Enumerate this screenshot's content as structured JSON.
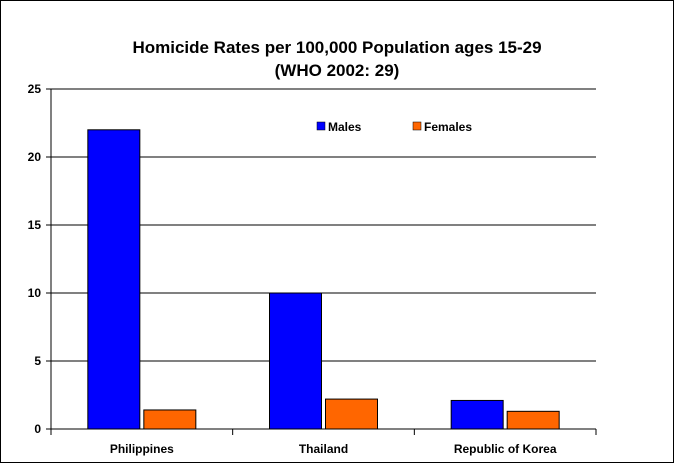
{
  "chart_data": {
    "type": "bar",
    "title": "Homicide Rates per 100,000 Population ages 15-29",
    "subtitle": "(WHO 2002: 29)",
    "xlabel": "",
    "ylabel": "",
    "categories": [
      "Philippines",
      "Thailand",
      "Republic of Korea"
    ],
    "series": [
      {
        "name": "Males",
        "color": "#0000ff",
        "values": [
          22,
          10,
          2.1
        ]
      },
      {
        "name": "Females",
        "color": "#ff6600",
        "values": [
          1.4,
          2.2,
          1.3
        ]
      }
    ],
    "ylim": [
      0,
      25
    ],
    "yticks": [
      0,
      5,
      10,
      15,
      20,
      25
    ],
    "grid": true,
    "legend_position": "top-right"
  }
}
